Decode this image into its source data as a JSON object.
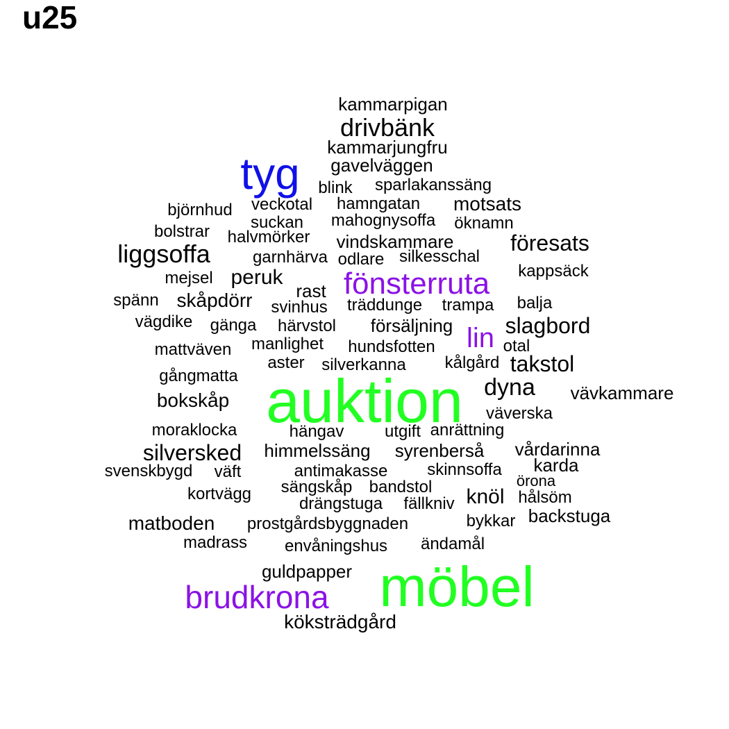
{
  "title": "u25",
  "colors": {
    "black": "#000000",
    "green": "#22ff22",
    "purple": "#8a12e6",
    "blue": "#1010e8"
  },
  "words": [
    {
      "text": "kammarpigan",
      "color": "black"
    },
    {
      "text": "drivbänk",
      "color": "black"
    },
    {
      "text": "kammarjungfru",
      "color": "black"
    },
    {
      "text": "tyg",
      "color": "blue"
    },
    {
      "text": "gavelväggen",
      "color": "black"
    },
    {
      "text": "blink",
      "color": "black"
    },
    {
      "text": "sparlakanssäng",
      "color": "black"
    },
    {
      "text": "björnhud",
      "color": "black"
    },
    {
      "text": "veckotal",
      "color": "black"
    },
    {
      "text": "hamngatan",
      "color": "black"
    },
    {
      "text": "motsats",
      "color": "black"
    },
    {
      "text": "bolstrar",
      "color": "black"
    },
    {
      "text": "suckan",
      "color": "black"
    },
    {
      "text": "mahognysoffa",
      "color": "black"
    },
    {
      "text": "öknamn",
      "color": "black"
    },
    {
      "text": "halvmörker",
      "color": "black"
    },
    {
      "text": "vindskammare",
      "color": "black"
    },
    {
      "text": "föresats",
      "color": "black"
    },
    {
      "text": "liggsoffa",
      "color": "black"
    },
    {
      "text": "garnhärva",
      "color": "black"
    },
    {
      "text": "odlare",
      "color": "black"
    },
    {
      "text": "silkesschal",
      "color": "black"
    },
    {
      "text": "kappsäck",
      "color": "black"
    },
    {
      "text": "mejsel",
      "color": "black"
    },
    {
      "text": "peruk",
      "color": "black"
    },
    {
      "text": "fönsterruta",
      "color": "purple"
    },
    {
      "text": "rast",
      "color": "black"
    },
    {
      "text": "spänn",
      "color": "black"
    },
    {
      "text": "skåpdörr",
      "color": "black"
    },
    {
      "text": "svinhus",
      "color": "black"
    },
    {
      "text": "träddunge",
      "color": "black"
    },
    {
      "text": "trampa",
      "color": "black"
    },
    {
      "text": "balja",
      "color": "black"
    },
    {
      "text": "vägdike",
      "color": "black"
    },
    {
      "text": "gänga",
      "color": "black"
    },
    {
      "text": "härvstol",
      "color": "black"
    },
    {
      "text": "försäljning",
      "color": "black"
    },
    {
      "text": "lin",
      "color": "purple"
    },
    {
      "text": "slagbord",
      "color": "black"
    },
    {
      "text": "mattväven",
      "color": "black"
    },
    {
      "text": "manlighet",
      "color": "black"
    },
    {
      "text": "hundsfotten",
      "color": "black"
    },
    {
      "text": "otal",
      "color": "black"
    },
    {
      "text": "aster",
      "color": "black"
    },
    {
      "text": "silverkanna",
      "color": "black"
    },
    {
      "text": "kålgård",
      "color": "black"
    },
    {
      "text": "takstol",
      "color": "black"
    },
    {
      "text": "gångmatta",
      "color": "black"
    },
    {
      "text": "auktion",
      "color": "green"
    },
    {
      "text": "dyna",
      "color": "black"
    },
    {
      "text": "vävkammare",
      "color": "black"
    },
    {
      "text": "bokskåp",
      "color": "black"
    },
    {
      "text": "väverska",
      "color": "black"
    },
    {
      "text": "moraklocka",
      "color": "black"
    },
    {
      "text": "hängav",
      "color": "black"
    },
    {
      "text": "utgift",
      "color": "black"
    },
    {
      "text": "anrättning",
      "color": "black"
    },
    {
      "text": "silversked",
      "color": "black"
    },
    {
      "text": "himmelssäng",
      "color": "black"
    },
    {
      "text": "syrenberså",
      "color": "black"
    },
    {
      "text": "vårdarinna",
      "color": "black"
    },
    {
      "text": "svenskbygd",
      "color": "black"
    },
    {
      "text": "väft",
      "color": "black"
    },
    {
      "text": "antimakasse",
      "color": "black"
    },
    {
      "text": "skinnsoffa",
      "color": "black"
    },
    {
      "text": "karda",
      "color": "black"
    },
    {
      "text": "sängskåp",
      "color": "black"
    },
    {
      "text": "bandstol",
      "color": "black"
    },
    {
      "text": "örona",
      "color": "black"
    },
    {
      "text": "kortvägg",
      "color": "black"
    },
    {
      "text": "drängstuga",
      "color": "black"
    },
    {
      "text": "fällkniv",
      "color": "black"
    },
    {
      "text": "knöl",
      "color": "black"
    },
    {
      "text": "hålsöm",
      "color": "black"
    },
    {
      "text": "matboden",
      "color": "black"
    },
    {
      "text": "prostgårdsbyggnaden",
      "color": "black"
    },
    {
      "text": "bykkar",
      "color": "black"
    },
    {
      "text": "backstuga",
      "color": "black"
    },
    {
      "text": "madrass",
      "color": "black"
    },
    {
      "text": "envåningshus",
      "color": "black"
    },
    {
      "text": "ändamål",
      "color": "black"
    },
    {
      "text": "guldpapper",
      "color": "black"
    },
    {
      "text": "brudkrona",
      "color": "purple"
    },
    {
      "text": "möbel",
      "color": "green"
    },
    {
      "text": "köksträdgård",
      "color": "black"
    }
  ]
}
